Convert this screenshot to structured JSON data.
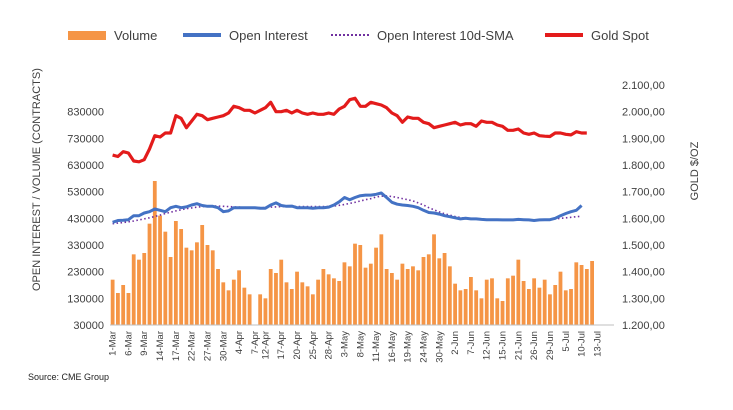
{
  "chart_data": {
    "type": "bar",
    "ylabel_left": "OPEN INTEREST / VOLUME (CONTRACTS)",
    "ylabel_right": "GOLD $/OZ",
    "ylim_left": [
      30000,
      930000
    ],
    "ylim_right": [
      1200,
      2100
    ],
    "y_ticks_left": [
      "30000",
      "130000",
      "230000",
      "330000",
      "430000",
      "530000",
      "630000",
      "730000",
      "830000"
    ],
    "y_ticks_right": [
      "1.200,00",
      "1.300,00",
      "1.400,00",
      "1.500,00",
      "1.600,00",
      "1.700,00",
      "1.800,00",
      "1.900,00",
      "2.000,00",
      "2.100,00"
    ],
    "y_tick_values_left": [
      30000,
      130000,
      230000,
      330000,
      430000,
      530000,
      630000,
      730000,
      830000
    ],
    "y_tick_values_right": [
      1200,
      1300,
      1400,
      1500,
      1600,
      1700,
      1800,
      1900,
      2000,
      2100
    ],
    "x_ticks": [
      {
        "label": "1-Mar",
        "index": 0
      },
      {
        "label": "6-Mar",
        "index": 3
      },
      {
        "label": "9-Mar",
        "index": 6
      },
      {
        "label": "14-Mar",
        "index": 9
      },
      {
        "label": "17-Mar",
        "index": 12
      },
      {
        "label": "22-Mar",
        "index": 15
      },
      {
        "label": "27-Mar",
        "index": 18
      },
      {
        "label": "30-Mar",
        "index": 21
      },
      {
        "label": "4-Apr",
        "index": 24
      },
      {
        "label": "7-Apr",
        "index": 27
      },
      {
        "label": "12-Apr",
        "index": 29
      },
      {
        "label": "17-Apr",
        "index": 32
      },
      {
        "label": "20-Apr",
        "index": 35
      },
      {
        "label": "25-Apr",
        "index": 38
      },
      {
        "label": "28-Apr",
        "index": 41
      },
      {
        "label": "3-May",
        "index": 44
      },
      {
        "label": "8-May",
        "index": 47
      },
      {
        "label": "11-May",
        "index": 50
      },
      {
        "label": "16-May",
        "index": 53
      },
      {
        "label": "19-May",
        "index": 56
      },
      {
        "label": "24-May",
        "index": 59
      },
      {
        "label": "30-May",
        "index": 62
      },
      {
        "label": "2-Jun",
        "index": 65
      },
      {
        "label": "7-Jun",
        "index": 68
      },
      {
        "label": "12-Jun",
        "index": 71
      },
      {
        "label": "15-Jun",
        "index": 74
      },
      {
        "label": "21-Jun",
        "index": 77
      },
      {
        "label": "26-Jun",
        "index": 80
      },
      {
        "label": "29-Jun",
        "index": 83
      },
      {
        "label": "5-Jul",
        "index": 86
      },
      {
        "label": "10-Jul",
        "index": 89
      },
      {
        "label": "13-Jul",
        "index": 92
      }
    ],
    "n_slots": 93,
    "legend": [
      "Volume",
      "Open Interest",
      "Open Interest 10d-SMA",
      "Gold Spot"
    ],
    "colors": {
      "volume": "#f59546",
      "oi": "#4472c4",
      "sma": "#7030a0",
      "gold": "#e31b1b"
    },
    "series": [
      {
        "name": "Volume",
        "axis": "left",
        "values": [
          200000,
          150000,
          180000,
          150000,
          295000,
          275000,
          300000,
          410000,
          570000,
          440000,
          380000,
          285000,
          420000,
          390000,
          320000,
          310000,
          340000,
          405000,
          330000,
          310000,
          240000,
          190000,
          160000,
          200000,
          235000,
          170000,
          145000,
          null,
          145000,
          130000,
          240000,
          225000,
          275000,
          190000,
          165000,
          230000,
          190000,
          175000,
          145000,
          200000,
          240000,
          220000,
          205000,
          195000,
          265000,
          250000,
          335000,
          330000,
          245000,
          260000,
          320000,
          370000,
          240000,
          225000,
          200000,
          260000,
          240000,
          250000,
          235000,
          285000,
          295000,
          370000,
          280000,
          300000,
          250000,
          185000,
          160000,
          165000,
          210000,
          160000,
          130000,
          200000,
          205000,
          130000,
          120000,
          205000,
          215000,
          275000,
          195000,
          165000,
          205000,
          170000,
          200000,
          145000,
          180000,
          230000,
          160000,
          165000,
          265000,
          255000,
          240000,
          270000,
          null
        ]
      },
      {
        "name": "Open Interest",
        "axis": "left",
        "values": [
          415000,
          422000,
          423000,
          425000,
          440000,
          440000,
          450000,
          455000,
          465000,
          460000,
          455000,
          470000,
          475000,
          470000,
          473000,
          480000,
          485000,
          478000,
          475000,
          475000,
          470000,
          455000,
          458000,
          470000,
          470000,
          470000,
          470000,
          470000,
          468000,
          468000,
          480000,
          488000,
          478000,
          475000,
          476000,
          470000,
          470000,
          470000,
          468000,
          470000,
          470000,
          472000,
          480000,
          492000,
          508000,
          500000,
          508000,
          515000,
          517000,
          517000,
          520000,
          525000,
          508000,
          490000,
          483000,
          480000,
          478000,
          475000,
          470000,
          460000,
          452000,
          450000,
          446000,
          440000,
          436000,
          432000,
          428000,
          430000,
          428000,
          428000,
          426000,
          425000,
          425000,
          425000,
          424000,
          424000,
          424000,
          426000,
          425000,
          424000,
          422000,
          424000,
          425000,
          425000,
          430000,
          440000,
          448000,
          455000,
          460000,
          478000,
          null,
          null,
          null
        ]
      },
      {
        "name": "Open Interest 10d-SMA",
        "axis": "left",
        "values": [
          410000,
          412000,
          414000,
          417000,
          420000,
          424000,
          428000,
          432000,
          437000,
          442000,
          448000,
          453000,
          458000,
          462000,
          466000,
          469000,
          472000,
          474000,
          476000,
          477000,
          476000,
          475000,
          474000,
          473000,
          472000,
          471000,
          470000,
          470000,
          470000,
          470000,
          472000,
          473000,
          474000,
          474000,
          474000,
          474000,
          474000,
          474000,
          474000,
          474000,
          474000,
          474000,
          476000,
          479000,
          482000,
          486000,
          490000,
          495000,
          500000,
          504000,
          510000,
          513000,
          514000,
          512000,
          508000,
          504000,
          500000,
          495000,
          488000,
          480000,
          470000,
          462000,
          454000,
          447000,
          442000,
          437000,
          433000,
          430000,
          428000,
          427000,
          426000,
          425000,
          425000,
          424000,
          424000,
          424000,
          424000,
          424000,
          424000,
          424000,
          424000,
          424000,
          425000,
          426000,
          428000,
          430000,
          432000,
          434000,
          436000,
          438000,
          null,
          null,
          null
        ]
      },
      {
        "name": "Gold Spot",
        "axis": "right",
        "values": [
          1837,
          1832,
          1850,
          1845,
          1815,
          1812,
          1820,
          1860,
          1910,
          1905,
          1920,
          1920,
          1985,
          1975,
          1940,
          1965,
          1990,
          1985,
          1970,
          1975,
          1980,
          1985,
          1995,
          2020,
          2015,
          2005,
          2005,
          1995,
          2005,
          2015,
          2035,
          2000,
          2000,
          2005,
          1995,
          2005,
          1995,
          1990,
          1995,
          1990,
          1990,
          1995,
          1990,
          2010,
          2020,
          2045,
          2050,
          2020,
          2020,
          2035,
          2030,
          2025,
          2015,
          1995,
          1985,
          1960,
          1980,
          1975,
          1975,
          1960,
          1955,
          1940,
          1945,
          1950,
          1955,
          1960,
          1950,
          1955,
          1955,
          1945,
          1965,
          1960,
          1960,
          1950,
          1945,
          1930,
          1930,
          1935,
          1920,
          1915,
          1920,
          1910,
          1908,
          1907,
          1920,
          1920,
          1915,
          1913,
          1925,
          1920,
          1920,
          null,
          null
        ]
      }
    ]
  },
  "legend": {
    "volume": "Volume",
    "oi": "Open Interest",
    "sma": "Open Interest 10d-SMA",
    "gold": "Gold Spot"
  },
  "source": "Source: CME Group"
}
